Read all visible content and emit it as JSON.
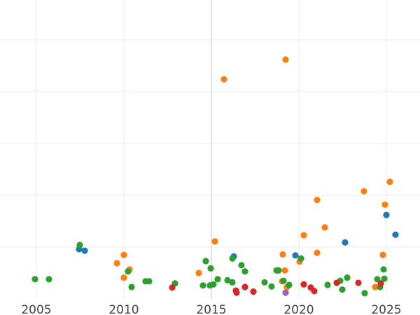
{
  "chart_data": {
    "type": "scatter",
    "title": "",
    "xlabel": "",
    "ylabel": "",
    "xlim": [
      2002.92,
      2026.92
    ],
    "ylim": [
      0,
      5.77
    ],
    "grid": true,
    "x_ticks": [
      "2005",
      "2010",
      "2015",
      "2020",
      "2025"
    ],
    "x_tick_values": [
      2005,
      2010,
      2015,
      2020,
      2025
    ],
    "y_grid_values": [
      1,
      2,
      3,
      4,
      5
    ],
    "series": [
      {
        "color": "#1f77b4",
        "points": [
          [
            2007.44,
            0.96
          ],
          [
            2007.76,
            0.93
          ],
          [
            2016.28,
            0.82
          ],
          [
            2019.8,
            0.84
          ],
          [
            2022.64,
            1.09
          ],
          [
            2025.0,
            1.62
          ],
          [
            2025.52,
            1.24
          ]
        ]
      },
      {
        "color": "#ff7f0e",
        "points": [
          [
            2009.6,
            0.69
          ],
          [
            2010.0,
            0.85
          ],
          [
            2010.32,
            0.57
          ],
          [
            2010.0,
            0.41
          ],
          [
            2014.28,
            0.5
          ],
          [
            2015.2,
            1.11
          ],
          [
            2015.72,
            4.24
          ],
          [
            2019.24,
            4.62
          ],
          [
            2019.08,
            0.86
          ],
          [
            2019.2,
            0.55
          ],
          [
            2019.04,
            0.34
          ],
          [
            2019.32,
            0.23
          ],
          [
            2020.04,
            0.72
          ],
          [
            2020.28,
            1.23
          ],
          [
            2021.04,
            0.89
          ],
          [
            2021.04,
            1.91
          ],
          [
            2021.48,
            1.38
          ],
          [
            2023.72,
            2.08
          ],
          [
            2025.2,
            2.26
          ],
          [
            2024.92,
            1.82
          ],
          [
            2024.8,
            0.85
          ],
          [
            2024.36,
            0.23
          ]
        ]
      },
      {
        "color": "#2ca02c",
        "points": [
          [
            2004.92,
            0.38
          ],
          [
            2005.72,
            0.38
          ],
          [
            2007.48,
            1.04
          ],
          [
            2010.24,
            0.53
          ],
          [
            2010.44,
            0.23
          ],
          [
            2011.24,
            0.34
          ],
          [
            2011.44,
            0.34
          ],
          [
            2012.92,
            0.3
          ],
          [
            2014.52,
            0.26
          ],
          [
            2014.68,
            0.73
          ],
          [
            2014.96,
            0.59
          ],
          [
            2014.92,
            0.26
          ],
          [
            2015.12,
            0.28
          ],
          [
            2015.36,
            0.38
          ],
          [
            2015.92,
            0.36
          ],
          [
            2016.2,
            0.32
          ],
          [
            2016.2,
            0.78
          ],
          [
            2016.72,
            0.65
          ],
          [
            2016.92,
            0.53
          ],
          [
            2018.04,
            0.32
          ],
          [
            2018.44,
            0.24
          ],
          [
            2018.72,
            0.55
          ],
          [
            2018.84,
            0.55
          ],
          [
            2019.12,
            0.35
          ],
          [
            2019.44,
            0.27
          ],
          [
            2020.12,
            0.78
          ],
          [
            2021.64,
            0.27
          ],
          [
            2022.36,
            0.35
          ],
          [
            2022.76,
            0.41
          ],
          [
            2022.48,
            0.18
          ],
          [
            2023.76,
            0.11
          ],
          [
            2024.48,
            0.38
          ],
          [
            2024.88,
            0.39
          ],
          [
            2024.84,
            0.57
          ],
          [
            2024.64,
            0.23
          ]
        ]
      },
      {
        "color": "#d62728",
        "points": [
          [
            2012.76,
            0.22
          ],
          [
            2016.4,
            0.16
          ],
          [
            2016.44,
            0.12
          ],
          [
            2016.92,
            0.23
          ],
          [
            2017.4,
            0.14
          ],
          [
            2020.28,
            0.28
          ],
          [
            2020.68,
            0.22
          ],
          [
            2020.88,
            0.15
          ],
          [
            2022.16,
            0.31
          ],
          [
            2023.4,
            0.31
          ],
          [
            2024.68,
            0.3
          ]
        ]
      },
      {
        "color": "#9467bd",
        "points": [
          [
            2019.24,
            0.12
          ]
        ]
      }
    ]
  }
}
